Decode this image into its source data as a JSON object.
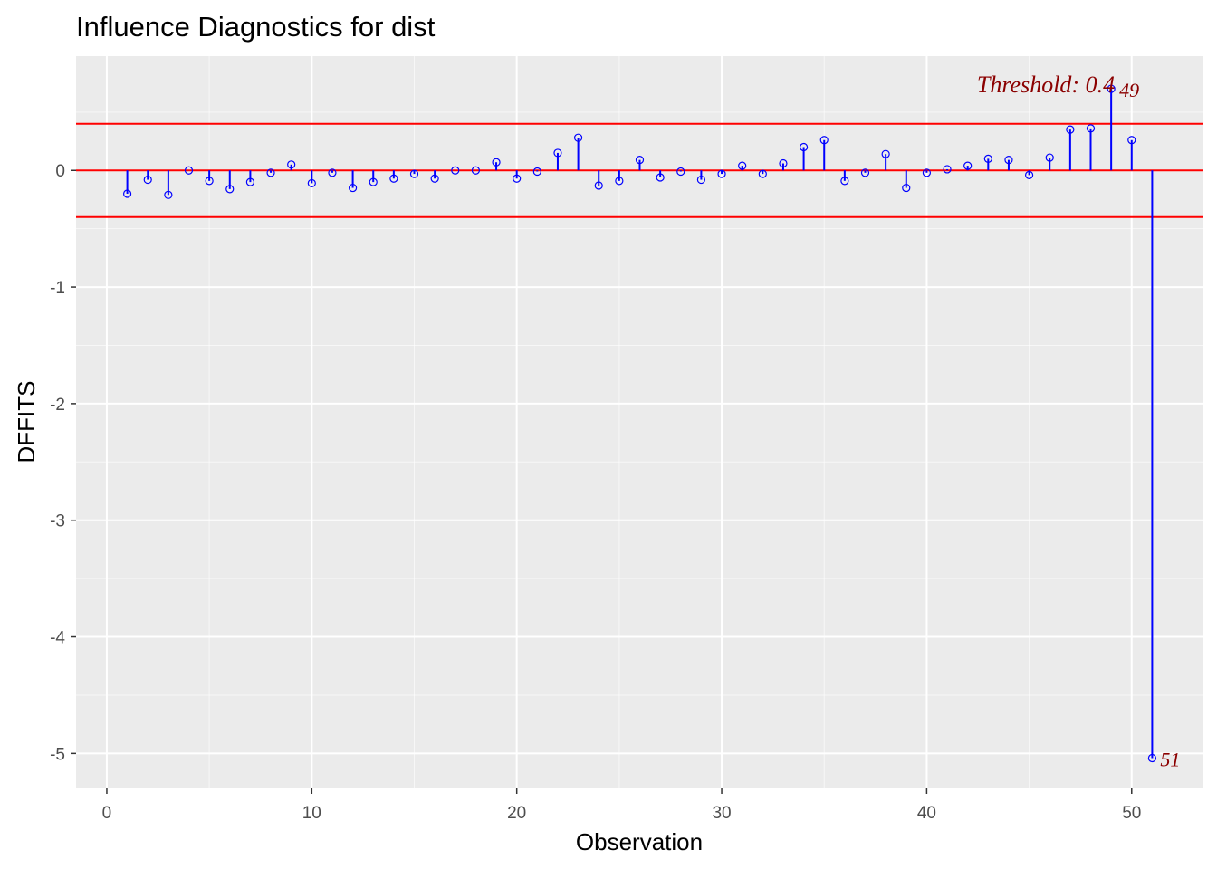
{
  "chart_data": {
    "type": "scatter",
    "subtype": "lollipop",
    "title": "Influence Diagnostics for dist",
    "xlabel": "Observation",
    "ylabel": "DFFITS",
    "xlim": [
      -1.5,
      53.5
    ],
    "ylim": [
      -5.3,
      0.98
    ],
    "x_ticks": [
      0,
      10,
      20,
      30,
      40,
      50
    ],
    "x_tick_labels": [
      "0",
      "10",
      "20",
      "30",
      "40",
      "50"
    ],
    "y_ticks": [
      0,
      -1,
      -2,
      -3,
      -4,
      -5
    ],
    "y_tick_labels": [
      "0",
      "-1",
      "-2",
      "-3",
      "-4",
      "-5"
    ],
    "grid": true,
    "threshold": 0.4,
    "threshold_label": "Threshold: 0.4",
    "x": [
      1,
      2,
      3,
      4,
      5,
      6,
      7,
      8,
      9,
      10,
      11,
      12,
      13,
      14,
      15,
      16,
      17,
      18,
      19,
      20,
      21,
      22,
      23,
      24,
      25,
      26,
      27,
      28,
      29,
      30,
      31,
      32,
      33,
      34,
      35,
      36,
      37,
      38,
      39,
      40,
      41,
      42,
      43,
      44,
      45,
      46,
      47,
      48,
      49,
      50,
      51
    ],
    "values": [
      -0.2,
      -0.08,
      -0.21,
      0.0,
      -0.09,
      -0.16,
      -0.1,
      -0.02,
      0.05,
      -0.11,
      -0.02,
      -0.15,
      -0.1,
      -0.07,
      -0.03,
      -0.07,
      0.0,
      0.0,
      0.07,
      -0.07,
      -0.01,
      0.15,
      0.28,
      -0.13,
      -0.09,
      0.09,
      -0.06,
      -0.01,
      -0.08,
      -0.03,
      0.04,
      -0.03,
      0.06,
      0.2,
      0.26,
      -0.09,
      -0.02,
      0.14,
      -0.15,
      -0.02,
      0.01,
      0.04,
      0.1,
      0.09,
      -0.04,
      0.11,
      0.35,
      0.36,
      0.7,
      0.26,
      -5.04
    ],
    "labeled_points": [
      {
        "x": 49,
        "label": "49"
      },
      {
        "x": 51,
        "label": "51"
      }
    ],
    "colors": {
      "panel": "#ebebeb",
      "grid_major": "#ffffff",
      "stem": "#0000ff",
      "point": "#0000ff",
      "reference_line": "#ff0000",
      "annotation": "#8b0000"
    }
  }
}
